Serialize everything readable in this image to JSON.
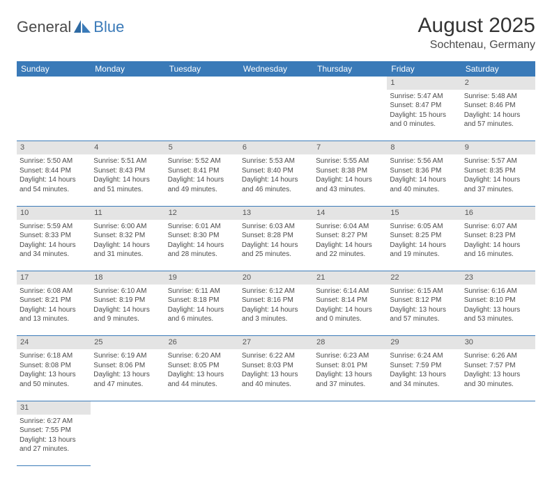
{
  "logo": {
    "main": "General",
    "sub": "Blue"
  },
  "title": "August 2025",
  "subtitle": "Sochtenau, Germany",
  "header_bg": "#3a7ab8",
  "daynum_bg": "#e4e4e4",
  "border_color": "#3a7ab8",
  "days_of_week": [
    "Sunday",
    "Monday",
    "Tuesday",
    "Wednesday",
    "Thursday",
    "Friday",
    "Saturday"
  ],
  "weeks": [
    {
      "cells": [
        null,
        null,
        null,
        null,
        null,
        {
          "n": "1",
          "sr": "Sunrise: 5:47 AM",
          "ss": "Sunset: 8:47 PM",
          "d1": "Daylight: 15 hours",
          "d2": "and 0 minutes."
        },
        {
          "n": "2",
          "sr": "Sunrise: 5:48 AM",
          "ss": "Sunset: 8:46 PM",
          "d1": "Daylight: 14 hours",
          "d2": "and 57 minutes."
        }
      ]
    },
    {
      "cells": [
        {
          "n": "3",
          "sr": "Sunrise: 5:50 AM",
          "ss": "Sunset: 8:44 PM",
          "d1": "Daylight: 14 hours",
          "d2": "and 54 minutes."
        },
        {
          "n": "4",
          "sr": "Sunrise: 5:51 AM",
          "ss": "Sunset: 8:43 PM",
          "d1": "Daylight: 14 hours",
          "d2": "and 51 minutes."
        },
        {
          "n": "5",
          "sr": "Sunrise: 5:52 AM",
          "ss": "Sunset: 8:41 PM",
          "d1": "Daylight: 14 hours",
          "d2": "and 49 minutes."
        },
        {
          "n": "6",
          "sr": "Sunrise: 5:53 AM",
          "ss": "Sunset: 8:40 PM",
          "d1": "Daylight: 14 hours",
          "d2": "and 46 minutes."
        },
        {
          "n": "7",
          "sr": "Sunrise: 5:55 AM",
          "ss": "Sunset: 8:38 PM",
          "d1": "Daylight: 14 hours",
          "d2": "and 43 minutes."
        },
        {
          "n": "8",
          "sr": "Sunrise: 5:56 AM",
          "ss": "Sunset: 8:36 PM",
          "d1": "Daylight: 14 hours",
          "d2": "and 40 minutes."
        },
        {
          "n": "9",
          "sr": "Sunrise: 5:57 AM",
          "ss": "Sunset: 8:35 PM",
          "d1": "Daylight: 14 hours",
          "d2": "and 37 minutes."
        }
      ]
    },
    {
      "cells": [
        {
          "n": "10",
          "sr": "Sunrise: 5:59 AM",
          "ss": "Sunset: 8:33 PM",
          "d1": "Daylight: 14 hours",
          "d2": "and 34 minutes."
        },
        {
          "n": "11",
          "sr": "Sunrise: 6:00 AM",
          "ss": "Sunset: 8:32 PM",
          "d1": "Daylight: 14 hours",
          "d2": "and 31 minutes."
        },
        {
          "n": "12",
          "sr": "Sunrise: 6:01 AM",
          "ss": "Sunset: 8:30 PM",
          "d1": "Daylight: 14 hours",
          "d2": "and 28 minutes."
        },
        {
          "n": "13",
          "sr": "Sunrise: 6:03 AM",
          "ss": "Sunset: 8:28 PM",
          "d1": "Daylight: 14 hours",
          "d2": "and 25 minutes."
        },
        {
          "n": "14",
          "sr": "Sunrise: 6:04 AM",
          "ss": "Sunset: 8:27 PM",
          "d1": "Daylight: 14 hours",
          "d2": "and 22 minutes."
        },
        {
          "n": "15",
          "sr": "Sunrise: 6:05 AM",
          "ss": "Sunset: 8:25 PM",
          "d1": "Daylight: 14 hours",
          "d2": "and 19 minutes."
        },
        {
          "n": "16",
          "sr": "Sunrise: 6:07 AM",
          "ss": "Sunset: 8:23 PM",
          "d1": "Daylight: 14 hours",
          "d2": "and 16 minutes."
        }
      ]
    },
    {
      "cells": [
        {
          "n": "17",
          "sr": "Sunrise: 6:08 AM",
          "ss": "Sunset: 8:21 PM",
          "d1": "Daylight: 14 hours",
          "d2": "and 13 minutes."
        },
        {
          "n": "18",
          "sr": "Sunrise: 6:10 AM",
          "ss": "Sunset: 8:19 PM",
          "d1": "Daylight: 14 hours",
          "d2": "and 9 minutes."
        },
        {
          "n": "19",
          "sr": "Sunrise: 6:11 AM",
          "ss": "Sunset: 8:18 PM",
          "d1": "Daylight: 14 hours",
          "d2": "and 6 minutes."
        },
        {
          "n": "20",
          "sr": "Sunrise: 6:12 AM",
          "ss": "Sunset: 8:16 PM",
          "d1": "Daylight: 14 hours",
          "d2": "and 3 minutes."
        },
        {
          "n": "21",
          "sr": "Sunrise: 6:14 AM",
          "ss": "Sunset: 8:14 PM",
          "d1": "Daylight: 14 hours",
          "d2": "and 0 minutes."
        },
        {
          "n": "22",
          "sr": "Sunrise: 6:15 AM",
          "ss": "Sunset: 8:12 PM",
          "d1": "Daylight: 13 hours",
          "d2": "and 57 minutes."
        },
        {
          "n": "23",
          "sr": "Sunrise: 6:16 AM",
          "ss": "Sunset: 8:10 PM",
          "d1": "Daylight: 13 hours",
          "d2": "and 53 minutes."
        }
      ]
    },
    {
      "cells": [
        {
          "n": "24",
          "sr": "Sunrise: 6:18 AM",
          "ss": "Sunset: 8:08 PM",
          "d1": "Daylight: 13 hours",
          "d2": "and 50 minutes."
        },
        {
          "n": "25",
          "sr": "Sunrise: 6:19 AM",
          "ss": "Sunset: 8:06 PM",
          "d1": "Daylight: 13 hours",
          "d2": "and 47 minutes."
        },
        {
          "n": "26",
          "sr": "Sunrise: 6:20 AM",
          "ss": "Sunset: 8:05 PM",
          "d1": "Daylight: 13 hours",
          "d2": "and 44 minutes."
        },
        {
          "n": "27",
          "sr": "Sunrise: 6:22 AM",
          "ss": "Sunset: 8:03 PM",
          "d1": "Daylight: 13 hours",
          "d2": "and 40 minutes."
        },
        {
          "n": "28",
          "sr": "Sunrise: 6:23 AM",
          "ss": "Sunset: 8:01 PM",
          "d1": "Daylight: 13 hours",
          "d2": "and 37 minutes."
        },
        {
          "n": "29",
          "sr": "Sunrise: 6:24 AM",
          "ss": "Sunset: 7:59 PM",
          "d1": "Daylight: 13 hours",
          "d2": "and 34 minutes."
        },
        {
          "n": "30",
          "sr": "Sunrise: 6:26 AM",
          "ss": "Sunset: 7:57 PM",
          "d1": "Daylight: 13 hours",
          "d2": "and 30 minutes."
        }
      ]
    },
    {
      "cells": [
        {
          "n": "31",
          "sr": "Sunrise: 6:27 AM",
          "ss": "Sunset: 7:55 PM",
          "d1": "Daylight: 13 hours",
          "d2": "and 27 minutes."
        },
        null,
        null,
        null,
        null,
        null,
        null
      ]
    }
  ]
}
